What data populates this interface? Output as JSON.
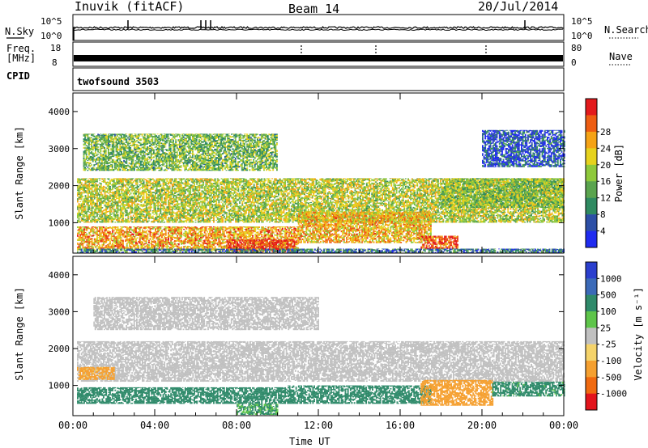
{
  "header": {
    "station": "Inuvik (fitACF)",
    "beam": "Beam 14",
    "date": "20/Jul/2014"
  },
  "noise_panel": {
    "left_label": "N.Sky",
    "left_top_tick": "10^5",
    "left_bottom_tick": "10^0",
    "right_top_tick": "10^5",
    "right_bottom_tick": "10^0",
    "right_label": "N.Search"
  },
  "freq_panel": {
    "left_label_1": "Freq.",
    "left_label_2": "[MHz]",
    "left_top_tick": "18",
    "left_bottom_tick": "8",
    "right_top_tick": "80",
    "right_bottom_tick": "0",
    "right_label": "Nave"
  },
  "cpid_panel": {
    "label": "CPID",
    "program": "twofsound 3503"
  },
  "chart_data": [
    {
      "type": "heatmap",
      "quantity": "Power",
      "ylabel": "Slant Range [km]",
      "ylim": [
        180,
        4500
      ],
      "xlim_hours": [
        0,
        24
      ],
      "yticks": [
        "1000",
        "2000",
        "3000",
        "4000"
      ],
      "colorbar": {
        "label": "Power [dB]",
        "ticks": [
          "4",
          "8",
          "12",
          "16",
          "20",
          "24",
          "28"
        ],
        "colors": [
          "#1f2bf0",
          "#2d4fa6",
          "#2f8a61",
          "#5aa44e",
          "#8ec93b",
          "#e6d21d",
          "#f5a316",
          "#ee5d12",
          "#e31a1c"
        ]
      },
      "regions": [
        {
          "t0": 0.2,
          "t1": 11.0,
          "r0": 250,
          "r1": 900,
          "value": 22
        },
        {
          "t0": 7.5,
          "t1": 10.8,
          "r0": 200,
          "r1": 550,
          "value": 28
        },
        {
          "t0": 0.2,
          "t1": 24.0,
          "r0": 1000,
          "r1": 2200,
          "value": 17
        },
        {
          "t0": 0.5,
          "t1": 10.0,
          "r0": 2400,
          "r1": 3400,
          "value": 14
        },
        {
          "t0": 11.0,
          "t1": 17.5,
          "r0": 450,
          "r1": 1300,
          "value": 21
        },
        {
          "t0": 17.0,
          "t1": 18.8,
          "r0": 300,
          "r1": 650,
          "value": 26
        },
        {
          "t0": 18.0,
          "t1": 24.0,
          "r0": 1400,
          "r1": 2200,
          "value": 15
        },
        {
          "t0": 20.0,
          "t1": 24.0,
          "r0": 2500,
          "r1": 3500,
          "value": 6
        },
        {
          "t0": 0.2,
          "t1": 24.0,
          "r0": 180,
          "r1": 300,
          "value": 9
        }
      ]
    },
    {
      "type": "heatmap",
      "quantity": "Velocity",
      "xlabel": "Time UT",
      "ylabel": "Slant Range [km]",
      "ylim": [
        180,
        4500
      ],
      "xlim_hours": [
        0,
        24
      ],
      "xticks": [
        "00:00",
        "04:00",
        "08:00",
        "12:00",
        "16:00",
        "20:00",
        "00:00"
      ],
      "yticks": [
        "1000",
        "2000",
        "3000",
        "4000"
      ],
      "colorbar": {
        "label": "Velocity [m s⁻¹]",
        "ticks": [
          "1000",
          "500",
          "100",
          "25",
          "-25",
          "-100",
          "-500",
          "-1000"
        ],
        "colors": [
          "#2b3fce",
          "#3b6ab8",
          "#2f8a6a",
          "#5ec54a",
          "#c0c0c0",
          "#f5d36a",
          "#f5a030",
          "#f06a10",
          "#e3141c"
        ]
      },
      "regions": [
        {
          "t0": 0.2,
          "t1": 24.0,
          "r0": 1100,
          "r1": 2200,
          "value": 0
        },
        {
          "t0": 1.0,
          "t1": 12.0,
          "r0": 2500,
          "r1": 3400,
          "value": 0
        },
        {
          "t0": 0.2,
          "t1": 10.5,
          "r0": 500,
          "r1": 950,
          "value": 200
        },
        {
          "t0": 8.0,
          "t1": 10.0,
          "r0": 200,
          "r1": 500,
          "value": 110
        },
        {
          "t0": 10.5,
          "t1": 17.5,
          "r0": 500,
          "r1": 1000,
          "value": 200
        },
        {
          "t0": 17.0,
          "t1": 20.5,
          "r0": 450,
          "r1": 1150,
          "value": -300
        },
        {
          "t0": 0.2,
          "t1": 2.0,
          "r0": 1150,
          "r1": 1500,
          "value": -150
        },
        {
          "t0": 20.5,
          "t1": 24.0,
          "r0": 700,
          "r1": 1100,
          "value": 150
        }
      ]
    }
  ]
}
